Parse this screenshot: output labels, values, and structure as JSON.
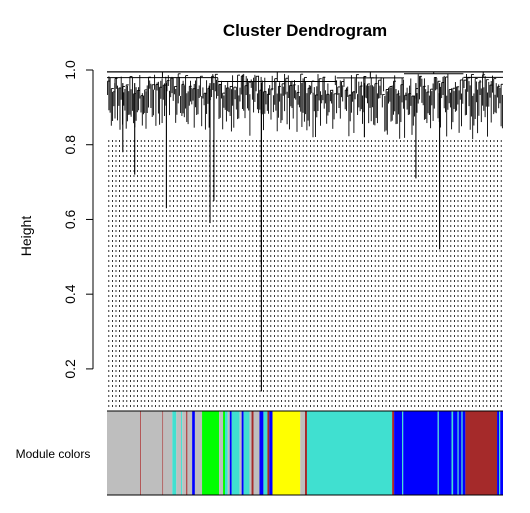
{
  "chart_data": {
    "type": "dendrogram",
    "title": "Cluster Dendrogram",
    "ylabel": "Height",
    "xlabel": "",
    "ylim": [
      0.09,
      1.0
    ],
    "yticks": [
      {
        "value": 0.2,
        "label": "0.2"
      },
      {
        "value": 0.4,
        "label": "0.4"
      },
      {
        "value": 0.6,
        "label": "0.6"
      },
      {
        "value": 0.8,
        "label": "0.8"
      },
      {
        "value": 1.0,
        "label": "1.0"
      }
    ],
    "grid": false,
    "module_colors_label": "Module colors",
    "merge_height_top": 0.995,
    "notable_merges": [
      {
        "x": 0.02,
        "height": 0.94
      },
      {
        "x": 0.04,
        "height": 0.78
      },
      {
        "x": 0.07,
        "height": 0.72
      },
      {
        "x": 0.15,
        "height": 0.63
      },
      {
        "x": 0.26,
        "height": 0.59
      },
      {
        "x": 0.27,
        "height": 0.65
      },
      {
        "x": 0.39,
        "height": 0.14
      },
      {
        "x": 0.39,
        "height": 0.48
      },
      {
        "x": 0.65,
        "height": 0.82
      },
      {
        "x": 0.78,
        "height": 0.71
      },
      {
        "x": 0.84,
        "height": 0.52
      }
    ],
    "module_bands": [
      {
        "from": 0.0,
        "to": 0.084,
        "color": "#bebebe"
      },
      {
        "from": 0.084,
        "to": 0.086,
        "color": "#a52a2a"
      },
      {
        "from": 0.086,
        "to": 0.14,
        "color": "#bebebe"
      },
      {
        "from": 0.14,
        "to": 0.142,
        "color": "#a52a2a"
      },
      {
        "from": 0.142,
        "to": 0.165,
        "color": "#bebebe"
      },
      {
        "from": 0.165,
        "to": 0.175,
        "color": "#40e0d0"
      },
      {
        "from": 0.175,
        "to": 0.187,
        "color": "#bebebe"
      },
      {
        "from": 0.187,
        "to": 0.19,
        "color": "#40e0d0"
      },
      {
        "from": 0.19,
        "to": 0.2,
        "color": "#bebebe"
      },
      {
        "from": 0.2,
        "to": 0.203,
        "color": "#a52a2a"
      },
      {
        "from": 0.203,
        "to": 0.215,
        "color": "#bebebe"
      },
      {
        "from": 0.215,
        "to": 0.222,
        "color": "#0000ff"
      },
      {
        "from": 0.222,
        "to": 0.24,
        "color": "#bebebe"
      },
      {
        "from": 0.24,
        "to": 0.283,
        "color": "#00ff00"
      },
      {
        "from": 0.283,
        "to": 0.293,
        "color": "#bebebe"
      },
      {
        "from": 0.293,
        "to": 0.298,
        "color": "#00ff00"
      },
      {
        "from": 0.298,
        "to": 0.305,
        "color": "#40e0d0"
      },
      {
        "from": 0.305,
        "to": 0.31,
        "color": "#bebebe"
      },
      {
        "from": 0.31,
        "to": 0.315,
        "color": "#0000ff"
      },
      {
        "from": 0.315,
        "to": 0.335,
        "color": "#40e0d0"
      },
      {
        "from": 0.335,
        "to": 0.34,
        "color": "#bebebe"
      },
      {
        "from": 0.34,
        "to": 0.345,
        "color": "#0000ff"
      },
      {
        "from": 0.345,
        "to": 0.36,
        "color": "#40e0d0"
      },
      {
        "from": 0.36,
        "to": 0.365,
        "color": "#bebebe"
      },
      {
        "from": 0.365,
        "to": 0.37,
        "color": "#a52a2a"
      },
      {
        "from": 0.37,
        "to": 0.385,
        "color": "#bebebe"
      },
      {
        "from": 0.385,
        "to": 0.395,
        "color": "#0000ff"
      },
      {
        "from": 0.395,
        "to": 0.405,
        "color": "#40e0d0"
      },
      {
        "from": 0.405,
        "to": 0.41,
        "color": "#a52a2a"
      },
      {
        "from": 0.41,
        "to": 0.418,
        "color": "#0000ff"
      },
      {
        "from": 0.418,
        "to": 0.488,
        "color": "#ffff00"
      },
      {
        "from": 0.488,
        "to": 0.5,
        "color": "#bebebe"
      },
      {
        "from": 0.5,
        "to": 0.505,
        "color": "#a52a2a"
      },
      {
        "from": 0.505,
        "to": 0.72,
        "color": "#40e0d0"
      },
      {
        "from": 0.72,
        "to": 0.725,
        "color": "#a52a2a"
      },
      {
        "from": 0.725,
        "to": 0.745,
        "color": "#0000ff"
      },
      {
        "from": 0.745,
        "to": 0.748,
        "color": "#40e0d0"
      },
      {
        "from": 0.748,
        "to": 0.835,
        "color": "#0000ff"
      },
      {
        "from": 0.835,
        "to": 0.838,
        "color": "#40e0d0"
      },
      {
        "from": 0.838,
        "to": 0.87,
        "color": "#0000ff"
      },
      {
        "from": 0.87,
        "to": 0.874,
        "color": "#40e0d0"
      },
      {
        "from": 0.874,
        "to": 0.885,
        "color": "#0000ff"
      },
      {
        "from": 0.885,
        "to": 0.888,
        "color": "#40e0d0"
      },
      {
        "from": 0.888,
        "to": 0.895,
        "color": "#0000ff"
      },
      {
        "from": 0.895,
        "to": 0.898,
        "color": "#40e0d0"
      },
      {
        "from": 0.898,
        "to": 0.905,
        "color": "#0000ff"
      },
      {
        "from": 0.905,
        "to": 0.985,
        "color": "#a52a2a"
      },
      {
        "from": 0.985,
        "to": 0.99,
        "color": "#0000ff"
      },
      {
        "from": 0.99,
        "to": 0.993,
        "color": "#40e0d0"
      },
      {
        "from": 0.993,
        "to": 1.0,
        "color": "#0000ff"
      }
    ],
    "colors": {
      "tree": "#000000",
      "leaf_dots": "#000000",
      "background": "#ffffff"
    }
  }
}
